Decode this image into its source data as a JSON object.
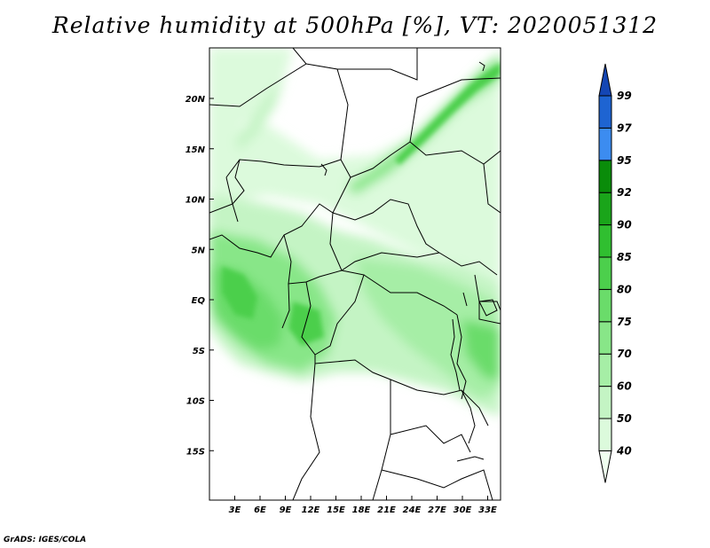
{
  "title": "Relative humidity at 500hPa [%], VT: 2020051312",
  "credit": "GrADS: IGES/COLA",
  "map": {
    "lat_labels": [
      "20N",
      "15N",
      "10N",
      "5N",
      "EQ",
      "5S",
      "10S",
      "15S"
    ],
    "lat_values": [
      20,
      15,
      10,
      5,
      0,
      -5,
      -10,
      -15
    ],
    "lon_labels": [
      "3E",
      "6E",
      "9E",
      "12E",
      "15E",
      "18E",
      "21E",
      "24E",
      "27E",
      "30E",
      "33E"
    ],
    "lon_values": [
      3,
      6,
      9,
      12,
      15,
      18,
      21,
      24,
      27,
      30,
      33
    ]
  },
  "colorbar": {
    "levels": [
      "40",
      "50",
      "60",
      "70",
      "75",
      "80",
      "85",
      "90",
      "92",
      "95",
      "97",
      "99"
    ],
    "colors": [
      "#f0fff0",
      "#dcfadc",
      "#c4f4c4",
      "#a6eea6",
      "#88e688",
      "#6adc6a",
      "#4ccf4c",
      "#30bf30",
      "#1aa51a",
      "#0a8c0a",
      "#3c8cf0",
      "#1e64d2",
      "#1446b4"
    ]
  }
}
